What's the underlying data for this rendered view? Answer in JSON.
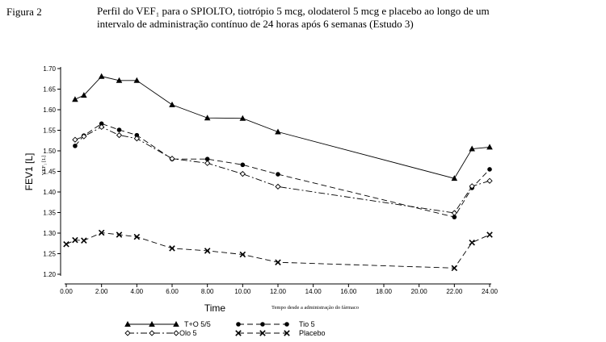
{
  "figure": {
    "label": "Figura 2",
    "title_line1": "Perfil do VEF₁ para o SPIOLTO, tiotrópio 5 mcg, olodaterol 5 mcg e placebo ao longo de um",
    "title_line2": "intervalo de administração contínuo de 24 horas após 6 semanas (Estudo 3)"
  },
  "chart_data": {
    "type": "line",
    "title": "Perfil do VEF₁ para o SPIOLTO, tiotrópio 5 mcg, olodaterol 5 mcg e placebo ao longo de um intervalo de administração contínuo de 24 horas após 6 semanas (Estudo 3)",
    "xlabel": "Time",
    "xlabel_secondary": "Tempo desde a administração do fármaco",
    "ylabel": "FEV1 [L]",
    "ylabel_secondary": "VEF₁ [L]",
    "xlim": [
      0,
      24
    ],
    "ylim": [
      1.2,
      1.7
    ],
    "xticks": [
      "0.00",
      "2.00",
      "4.00",
      "6.00",
      "8.00",
      "10.00",
      "12.00",
      "14.00",
      "16.00",
      "18.00",
      "20.00",
      "22.00",
      "24.00"
    ],
    "yticks": [
      "1.20",
      "1.25",
      "1.30",
      "1.35",
      "1.40",
      "1.45",
      "1.50",
      "1.55",
      "1.60",
      "1.65",
      "1.70"
    ],
    "grid": false,
    "legend_position": "bottom",
    "series": [
      {
        "name": "T+O 5/5",
        "marker": "triangle",
        "dash": "solid",
        "x": [
          0.5,
          1,
          2,
          3,
          4,
          6,
          8,
          10,
          12,
          22,
          23,
          24
        ],
        "y": [
          1.625,
          1.635,
          1.681,
          1.671,
          1.671,
          1.612,
          1.58,
          1.579,
          1.546,
          1.433,
          1.505,
          1.509
        ]
      },
      {
        "name": "Tio 5",
        "marker": "circle",
        "dash": "dashed",
        "x": [
          0.5,
          1,
          2,
          3,
          4,
          6,
          8,
          10,
          12,
          22,
          23,
          24
        ],
        "y": [
          1.512,
          1.537,
          1.566,
          1.551,
          1.538,
          1.48,
          1.48,
          1.466,
          1.443,
          1.339,
          1.41,
          1.455
        ]
      },
      {
        "name": "Olo 5",
        "marker": "diamond",
        "dash": "dashdot",
        "x": [
          0.5,
          1,
          2,
          3,
          4,
          6,
          8,
          10,
          12,
          22,
          23,
          24
        ],
        "y": [
          1.527,
          1.535,
          1.558,
          1.538,
          1.53,
          1.481,
          1.47,
          1.444,
          1.413,
          1.349,
          1.414,
          1.427
        ]
      },
      {
        "name": "Placebo",
        "marker": "x",
        "dash": "dashed",
        "x": [
          0,
          0.5,
          1,
          2,
          3,
          4,
          6,
          8,
          10,
          12,
          22,
          23,
          24
        ],
        "y": [
          1.273,
          1.283,
          1.282,
          1.301,
          1.296,
          1.291,
          1.263,
          1.257,
          1.248,
          1.229,
          1.215,
          1.277,
          1.296
        ]
      }
    ]
  }
}
